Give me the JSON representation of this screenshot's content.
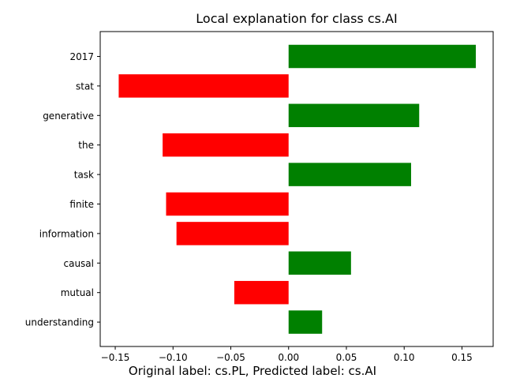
{
  "chart_data": {
    "type": "bar",
    "orientation": "horizontal",
    "title": "Local explanation for class cs.AI",
    "caption": "Original label: cs.PL, Predicted label: cs.AI",
    "xlabel": "",
    "ylabel": "",
    "xlim": [
      -0.163,
      0.177
    ],
    "xticks": [
      -0.15,
      -0.1,
      -0.05,
      0.0,
      0.05,
      0.1,
      0.15
    ],
    "xtick_labels": [
      "−0.15",
      "−0.10",
      "−0.05",
      "0.00",
      "0.05",
      "0.10",
      "0.15"
    ],
    "grid": false,
    "legend": "none",
    "positive_color": "#008000",
    "negative_color": "#ff0000",
    "categories": [
      "2017",
      "stat",
      "generative",
      "the",
      "task",
      "finite",
      "information",
      "causal",
      "mutual",
      "understanding"
    ],
    "values": [
      0.162,
      -0.147,
      0.113,
      -0.109,
      0.106,
      -0.106,
      -0.097,
      0.054,
      -0.047,
      0.029
    ]
  }
}
